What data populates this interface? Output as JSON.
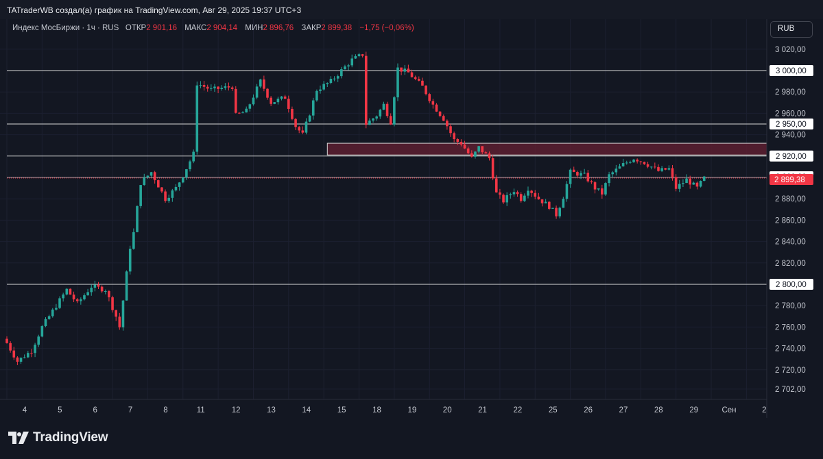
{
  "header": {
    "attribution": "TATraderWB создал(а) график на TradingView.com, Авг 29, 2025 19:37 UTC+3"
  },
  "legend": {
    "symbol": "Индекс МосБиржи · 1ч · RUS",
    "open_label": "ОТКР",
    "open_value": "2 901,16",
    "high_label": "МАКС",
    "high_value": "2 904,14",
    "low_label": "МИН",
    "low_value": "2 896,76",
    "close_label": "ЗАКР",
    "close_value": "2 899,38",
    "change": "−1,75 (−0,06%)"
  },
  "currency_button": "RUB",
  "footer": {
    "logo_text": "TradingView"
  },
  "colors": {
    "up": "#26a69a",
    "down": "#f23645",
    "background": "#131722",
    "zone": "#5c1f30"
  },
  "chart_data": {
    "type": "candlestick",
    "title": "Индекс МосБиржи · 1ч · RUS",
    "ylim": [
      2695,
      3030
    ],
    "y_ticks": [
      "3 020,00",
      "2 980,00",
      "2 960,00",
      "2 940,00",
      "2 880,00",
      "2 860,00",
      "2 840,00",
      "2 820,00",
      "2 780,00",
      "2 760,00",
      "2 740,00",
      "2 720,00",
      "2 702,00"
    ],
    "y_tick_values": [
      3020,
      2980,
      2960,
      2940,
      2880,
      2860,
      2840,
      2820,
      2780,
      2760,
      2740,
      2720,
      2702
    ],
    "x_ticks": [
      {
        "label": "4",
        "index": 0
      },
      {
        "label": "5",
        "index": 5
      },
      {
        "label": "6",
        "index": 10
      },
      {
        "label": "7",
        "index": 15
      },
      {
        "label": "8",
        "index": 20
      },
      {
        "label": "11",
        "index": 25
      },
      {
        "label": "12",
        "index": 30
      },
      {
        "label": "13",
        "index": 35
      },
      {
        "label": "14",
        "index": 40
      },
      {
        "label": "15",
        "index": 45
      },
      {
        "label": "18",
        "index": 50
      },
      {
        "label": "19",
        "index": 55
      },
      {
        "label": "20",
        "index": 60
      },
      {
        "label": "21",
        "index": 65
      },
      {
        "label": "22",
        "index": 70
      },
      {
        "label": "25",
        "index": 75
      },
      {
        "label": "26",
        "index": 80
      },
      {
        "label": "27",
        "index": 85
      },
      {
        "label": "28",
        "index": 90
      },
      {
        "label": "29",
        "index": 95
      },
      {
        "label": "Сен",
        "index": 100
      },
      {
        "label": "2",
        "index": 105
      }
    ],
    "horizontal_levels": [
      {
        "value": 3000,
        "label": "3 000,00"
      },
      {
        "value": 2950,
        "label": "2 950,00"
      },
      {
        "value": 2920,
        "label": "2 920,00"
      },
      {
        "value": 2800,
        "label": "2 800,00"
      }
    ],
    "level_2900_label": "2 900,00",
    "last_price": {
      "value": 2899.38,
      "label": "2 899,38"
    },
    "resistance_zone": {
      "y_low": 2921,
      "y_high": 2932,
      "from_index": 45.5,
      "to_index": 107
    },
    "candle_anchors": [
      [
        0,
        2745
      ],
      [
        1.5,
        2728
      ],
      [
        3.5,
        2738
      ],
      [
        5,
        2760
      ],
      [
        7,
        2780
      ],
      [
        8.5,
        2795
      ],
      [
        10,
        2782
      ],
      [
        12,
        2798
      ],
      [
        14,
        2795
      ],
      [
        15.5,
        2770
      ],
      [
        16,
        2760
      ],
      [
        17.5,
        2835
      ],
      [
        18,
        2848
      ],
      [
        19,
        2895
      ],
      [
        20.5,
        2905
      ],
      [
        22.5,
        2880
      ],
      [
        24,
        2890
      ],
      [
        25,
        2902
      ],
      [
        26.5,
        2922
      ],
      [
        27,
        2988
      ],
      [
        29,
        2982
      ],
      [
        32,
        2985
      ],
      [
        32.5,
        2958
      ],
      [
        34,
        2962
      ],
      [
        36,
        2990
      ],
      [
        37.5,
        2970
      ],
      [
        39.5,
        2975
      ],
      [
        41,
        2948
      ],
      [
        42,
        2940
      ],
      [
        43,
        2960
      ],
      [
        44,
        2982
      ],
      [
        46,
        2990
      ],
      [
        49,
        3010
      ],
      [
        50.5,
        3015
      ],
      [
        51,
        2950
      ],
      [
        52.5,
        2958
      ],
      [
        53.5,
        2968
      ],
      [
        54.5,
        2952
      ],
      [
        55.5,
        3002
      ],
      [
        57,
        2998
      ],
      [
        59,
        2985
      ],
      [
        60.5,
        2968
      ],
      [
        62,
        2955
      ],
      [
        63.5,
        2935
      ],
      [
        64.5,
        2932
      ],
      [
        66,
        2918
      ],
      [
        67,
        2928
      ],
      [
        68.5,
        2918
      ],
      [
        69.5,
        2885
      ],
      [
        70.5,
        2878
      ],
      [
        72,
        2888
      ],
      [
        73,
        2880
      ],
      [
        74,
        2890
      ],
      [
        75.5,
        2880
      ],
      [
        77,
        2873
      ],
      [
        78,
        2865
      ],
      [
        79,
        2882
      ],
      [
        80,
        2905
      ],
      [
        82,
        2902
      ],
      [
        83.5,
        2890
      ],
      [
        84.5,
        2885
      ],
      [
        85.5,
        2902
      ],
      [
        87.5,
        2912
      ],
      [
        89,
        2918
      ],
      [
        90.5,
        2914
      ],
      [
        92.5,
        2906
      ],
      [
        94,
        2908
      ],
      [
        95,
        2890
      ],
      [
        96.5,
        2898
      ],
      [
        98,
        2890
      ],
      [
        99,
        2899.38
      ]
    ]
  }
}
